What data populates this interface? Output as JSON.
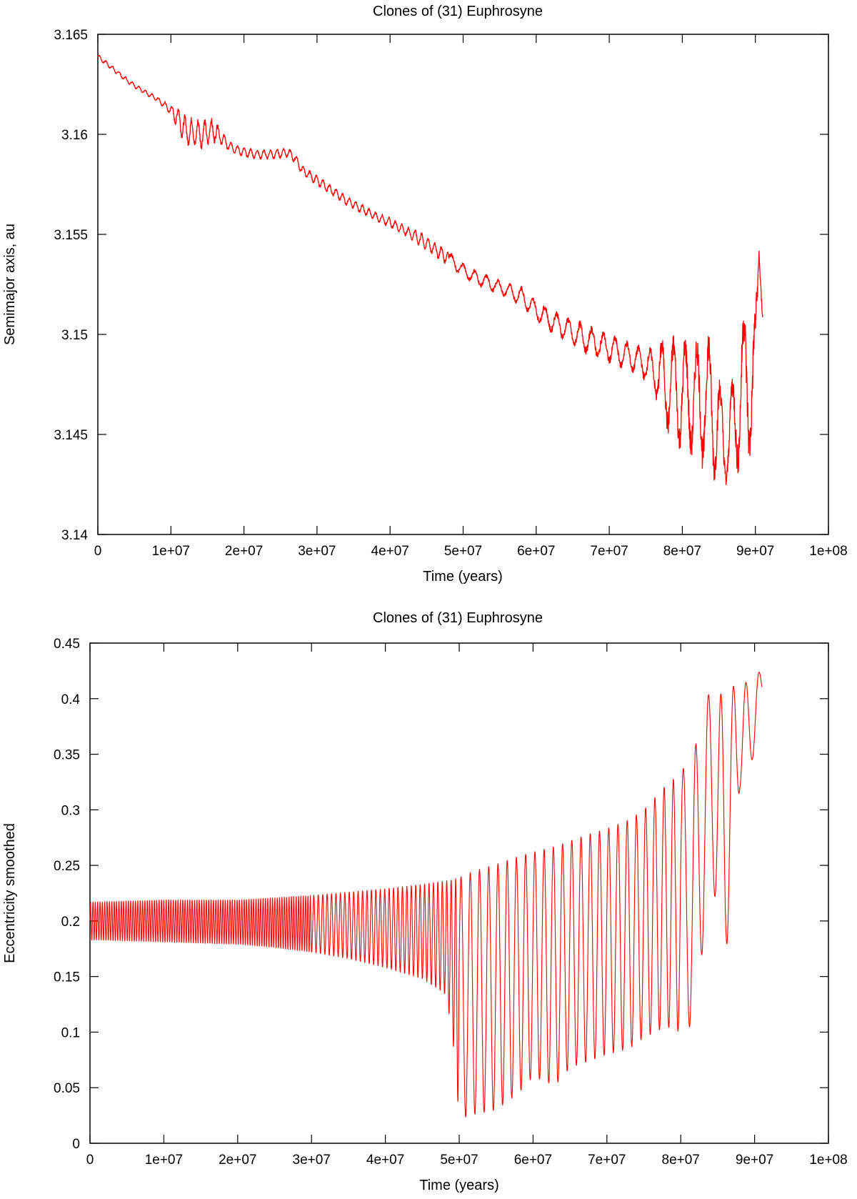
{
  "chart_data": [
    {
      "type": "line",
      "title": "Clones of (31) Euphrosyne",
      "xlabel": "Time (years)",
      "ylabel": "Semimajor axis, au",
      "xlim": [
        0,
        100000000
      ],
      "ylim": [
        3.14,
        3.165
      ],
      "x_ticks": [
        "0",
        "1e+07",
        "2e+07",
        "3e+07",
        "4e+07",
        "5e+07",
        "6e+07",
        "7e+07",
        "8e+07",
        "9e+07",
        "1e+08"
      ],
      "y_ticks": [
        "3.14",
        "3.145",
        "3.15",
        "3.155",
        "3.16",
        "3.165"
      ],
      "grid": false,
      "color": "#ff0000",
      "series": [
        {
          "x": [
            0,
            2000000,
            4000000,
            6000000,
            8000000,
            10000000,
            11000000,
            12000000,
            14000000,
            16000000,
            17000000,
            18000000,
            20000000,
            22000000,
            24000000,
            26000000,
            27000000,
            28000000,
            30000000,
            32000000,
            34000000,
            36000000,
            38000000,
            40000000,
            42000000,
            44000000,
            46000000,
            48000000,
            50000000,
            52000000,
            54000000,
            56000000,
            58000000,
            60000000,
            62000000,
            64000000,
            66000000,
            68000000,
            70000000,
            72000000,
            74000000,
            76000000,
            77000000,
            78000000,
            80000000,
            82000000,
            84000000,
            86000000,
            88000000,
            89000000,
            90000000,
            90500000,
            91000000
          ],
          "y": [
            3.1639,
            3.1633,
            3.1627,
            3.1622,
            3.1618,
            3.1612,
            3.1608,
            3.1602,
            3.16,
            3.1602,
            3.1598,
            3.1594,
            3.1591,
            3.159,
            3.159,
            3.1591,
            3.1588,
            3.1582,
            3.1577,
            3.1572,
            3.1567,
            3.1563,
            3.1559,
            3.1556,
            3.1552,
            3.1548,
            3.1543,
            3.1538,
            3.1532,
            3.1528,
            3.1525,
            3.1522,
            3.1519,
            3.1512,
            3.1507,
            3.1503,
            3.1499,
            3.1496,
            3.1493,
            3.149,
            3.1487,
            3.1483,
            3.1478,
            3.1475,
            3.147,
            3.1468,
            3.1465,
            3.1442,
            3.147,
            3.148,
            3.1475,
            3.1545,
            3.1515
          ],
          "oscillation": [
            0.0001,
            0.0001,
            0.0001,
            0.0001,
            0.0001,
            0.0002,
            0.0005,
            0.0006,
            0.0006,
            0.0005,
            0.0003,
            0.0002,
            0.0002,
            0.0002,
            0.0002,
            0.0002,
            0.0002,
            0.0002,
            0.0002,
            0.0002,
            0.0002,
            0.0002,
            0.0002,
            0.0002,
            0.0002,
            0.0003,
            0.0003,
            0.0003,
            0.0003,
            0.0003,
            0.0003,
            0.0003,
            0.0004,
            0.0004,
            0.0005,
            0.0005,
            0.0006,
            0.0006,
            0.0006,
            0.0006,
            0.0006,
            0.0008,
            0.0016,
            0.002,
            0.0024,
            0.0025,
            0.003,
            0.0015,
            0.003,
            0.0035,
            0.003,
            0.0008,
            0.0008
          ]
        }
      ]
    },
    {
      "type": "line",
      "title": "Clones of (31) Euphrosyne",
      "xlabel": "Time (years)",
      "ylabel": "Eccentricity smoothed",
      "xlim": [
        0,
        100000000
      ],
      "ylim": [
        0,
        0.45
      ],
      "x_ticks": [
        "0",
        "1e+07",
        "2e+07",
        "3e+07",
        "4e+07",
        "5e+07",
        "6e+07",
        "7e+07",
        "8e+07",
        "9e+07",
        "1e+08"
      ],
      "y_ticks": [
        "0",
        "0.05",
        "0.1",
        "0.15",
        "0.2",
        "0.25",
        "0.3",
        "0.35",
        "0.4",
        "0.45"
      ],
      "grid": false,
      "color": "#ff0000",
      "series": [
        {
          "x": [
            0,
            10000000,
            20000000,
            25000000,
            30000000,
            35000000,
            40000000,
            45000000,
            48000000,
            49000000,
            50000000,
            52000000,
            55000000,
            58000000,
            60000000,
            63000000,
            65000000,
            68000000,
            70000000,
            73000000,
            75000000,
            78000000,
            80000000,
            82000000,
            84000000,
            86000000,
            88000000,
            90000000,
            91000000
          ],
          "y_max": [
            0.217,
            0.219,
            0.219,
            0.221,
            0.223,
            0.226,
            0.229,
            0.233,
            0.236,
            0.237,
            0.239,
            0.245,
            0.251,
            0.258,
            0.262,
            0.267,
            0.272,
            0.279,
            0.283,
            0.291,
            0.3,
            0.322,
            0.333,
            0.358,
            0.41,
            0.402,
            0.418,
            0.41,
            0.434
          ],
          "y_min": [
            0.183,
            0.181,
            0.179,
            0.176,
            0.172,
            0.166,
            0.158,
            0.148,
            0.135,
            0.105,
            0.022,
            0.026,
            0.03,
            0.045,
            0.06,
            0.052,
            0.068,
            0.075,
            0.08,
            0.085,
            0.095,
            0.105,
            0.1,
            0.108,
            0.25,
            0.158,
            0.32,
            0.35,
            0.392
          ]
        }
      ]
    }
  ]
}
